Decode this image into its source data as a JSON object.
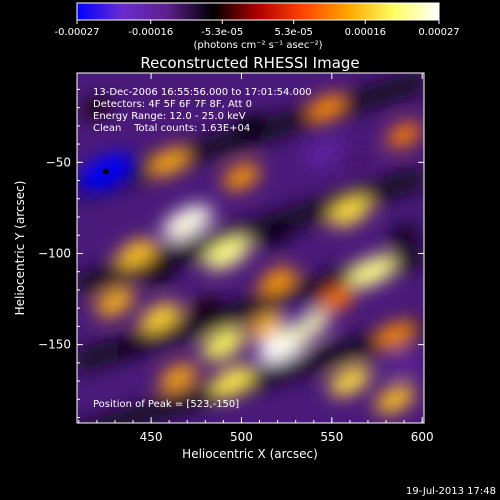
{
  "chart_data": {
    "type": "heatmap",
    "title": "Reconstructed RHESSI Image",
    "xlabel": "Heliocentric X (arcsec)",
    "ylabel": "Heliocentric Y (arcsec)",
    "xlim": [
      409,
      601
    ],
    "ylim": [
      -193,
      -1
    ],
    "x_ticks": [
      450,
      500,
      550,
      600
    ],
    "y_ticks": [
      -50,
      -100,
      -150
    ],
    "colorbar": {
      "range": [
        -0.00027,
        0.00027
      ],
      "tick_values": [
        -0.00027,
        -0.00016,
        -5.33e-05,
        5.33e-05,
        0.00016,
        0.00027
      ],
      "tick_labels": [
        "-0.00027",
        "-0.00016",
        "-5.3e-05",
        "5.3e-05",
        "0.00016",
        "0.00027"
      ],
      "units_label": "(photons cm⁻² s⁻¹ asec⁻²)",
      "colormap": [
        "#0000ff",
        "#6a2bd0",
        "#5c1f8c",
        "#000000",
        "#b00000",
        "#ff4500",
        "#ffa500",
        "#ffff60",
        "#ffffff"
      ]
    },
    "annotations": [
      "13-Dec-2006 16:55:56.000 to 17:01:54.000",
      "Detectors: 4F 5F 6F 7F 8F, Att 0",
      "Energy Range: 12.0 - 25.0 keV",
      "Clean    Total counts: 1.63E+04"
    ],
    "peak_label": "Position of Peak = [523,-150]",
    "peak": [
      523,
      -150
    ],
    "blobs": [
      {
        "x": 470,
        "y": -83,
        "value": 0.00026
      },
      {
        "x": 492,
        "y": -100,
        "value": 0.00022
      },
      {
        "x": 442,
        "y": -100,
        "value": 0.00016
      },
      {
        "x": 460,
        "y": -50,
        "value": 0.00014
      },
      {
        "x": 500,
        "y": -58,
        "value": 0.00013
      },
      {
        "x": 520,
        "y": -115,
        "value": 0.00013
      },
      {
        "x": 560,
        "y": -77,
        "value": 0.00018
      },
      {
        "x": 572,
        "y": -110,
        "value": 0.00022
      },
      {
        "x": 547,
        "y": -20,
        "value": 0.00012
      },
      {
        "x": 590,
        "y": -35,
        "value": 0.00011
      },
      {
        "x": 585,
        "y": -145,
        "value": 0.00012
      },
      {
        "x": 430,
        "y": -127,
        "value": 0.00015
      },
      {
        "x": 455,
        "y": -135,
        "value": 0.00017
      },
      {
        "x": 490,
        "y": -150,
        "value": 0.0002
      },
      {
        "x": 515,
        "y": -140,
        "value": 0.00015
      },
      {
        "x": 523,
        "y": -150,
        "value": 0.00027
      },
      {
        "x": 535,
        "y": -140,
        "value": 0.00024
      },
      {
        "x": 495,
        "y": -170,
        "value": 0.00019
      },
      {
        "x": 465,
        "y": -168,
        "value": 0.00014
      },
      {
        "x": 560,
        "y": -170,
        "value": 0.00018
      },
      {
        "x": 585,
        "y": -180,
        "value": 0.00016
      },
      {
        "x": 553,
        "y": -125,
        "value": 0.0001
      },
      {
        "x": 425,
        "y": -55,
        "value": -0.00027
      },
      {
        "x": 545,
        "y": -45,
        "value": -0.00016
      },
      {
        "x": 565,
        "y": -50,
        "value": -0.00012
      },
      {
        "x": 530,
        "y": -135,
        "value": -0.00015
      },
      {
        "x": 590,
        "y": -160,
        "value": -0.00014
      },
      {
        "x": 455,
        "y": -110,
        "value": -7e-05
      },
      {
        "x": 520,
        "y": -90,
        "value": -8e-05
      },
      {
        "x": 480,
        "y": -130,
        "value": -6e-05
      },
      {
        "x": 440,
        "y": -150,
        "value": -8e-05
      },
      {
        "x": 505,
        "y": -30,
        "value": -7e-05
      },
      {
        "x": 420,
        "y": -20,
        "value": -6e-05
      },
      {
        "x": 590,
        "y": -90,
        "value": -8e-05
      }
    ]
  },
  "footer_timestamp": "19-Jul-2013 17:48"
}
